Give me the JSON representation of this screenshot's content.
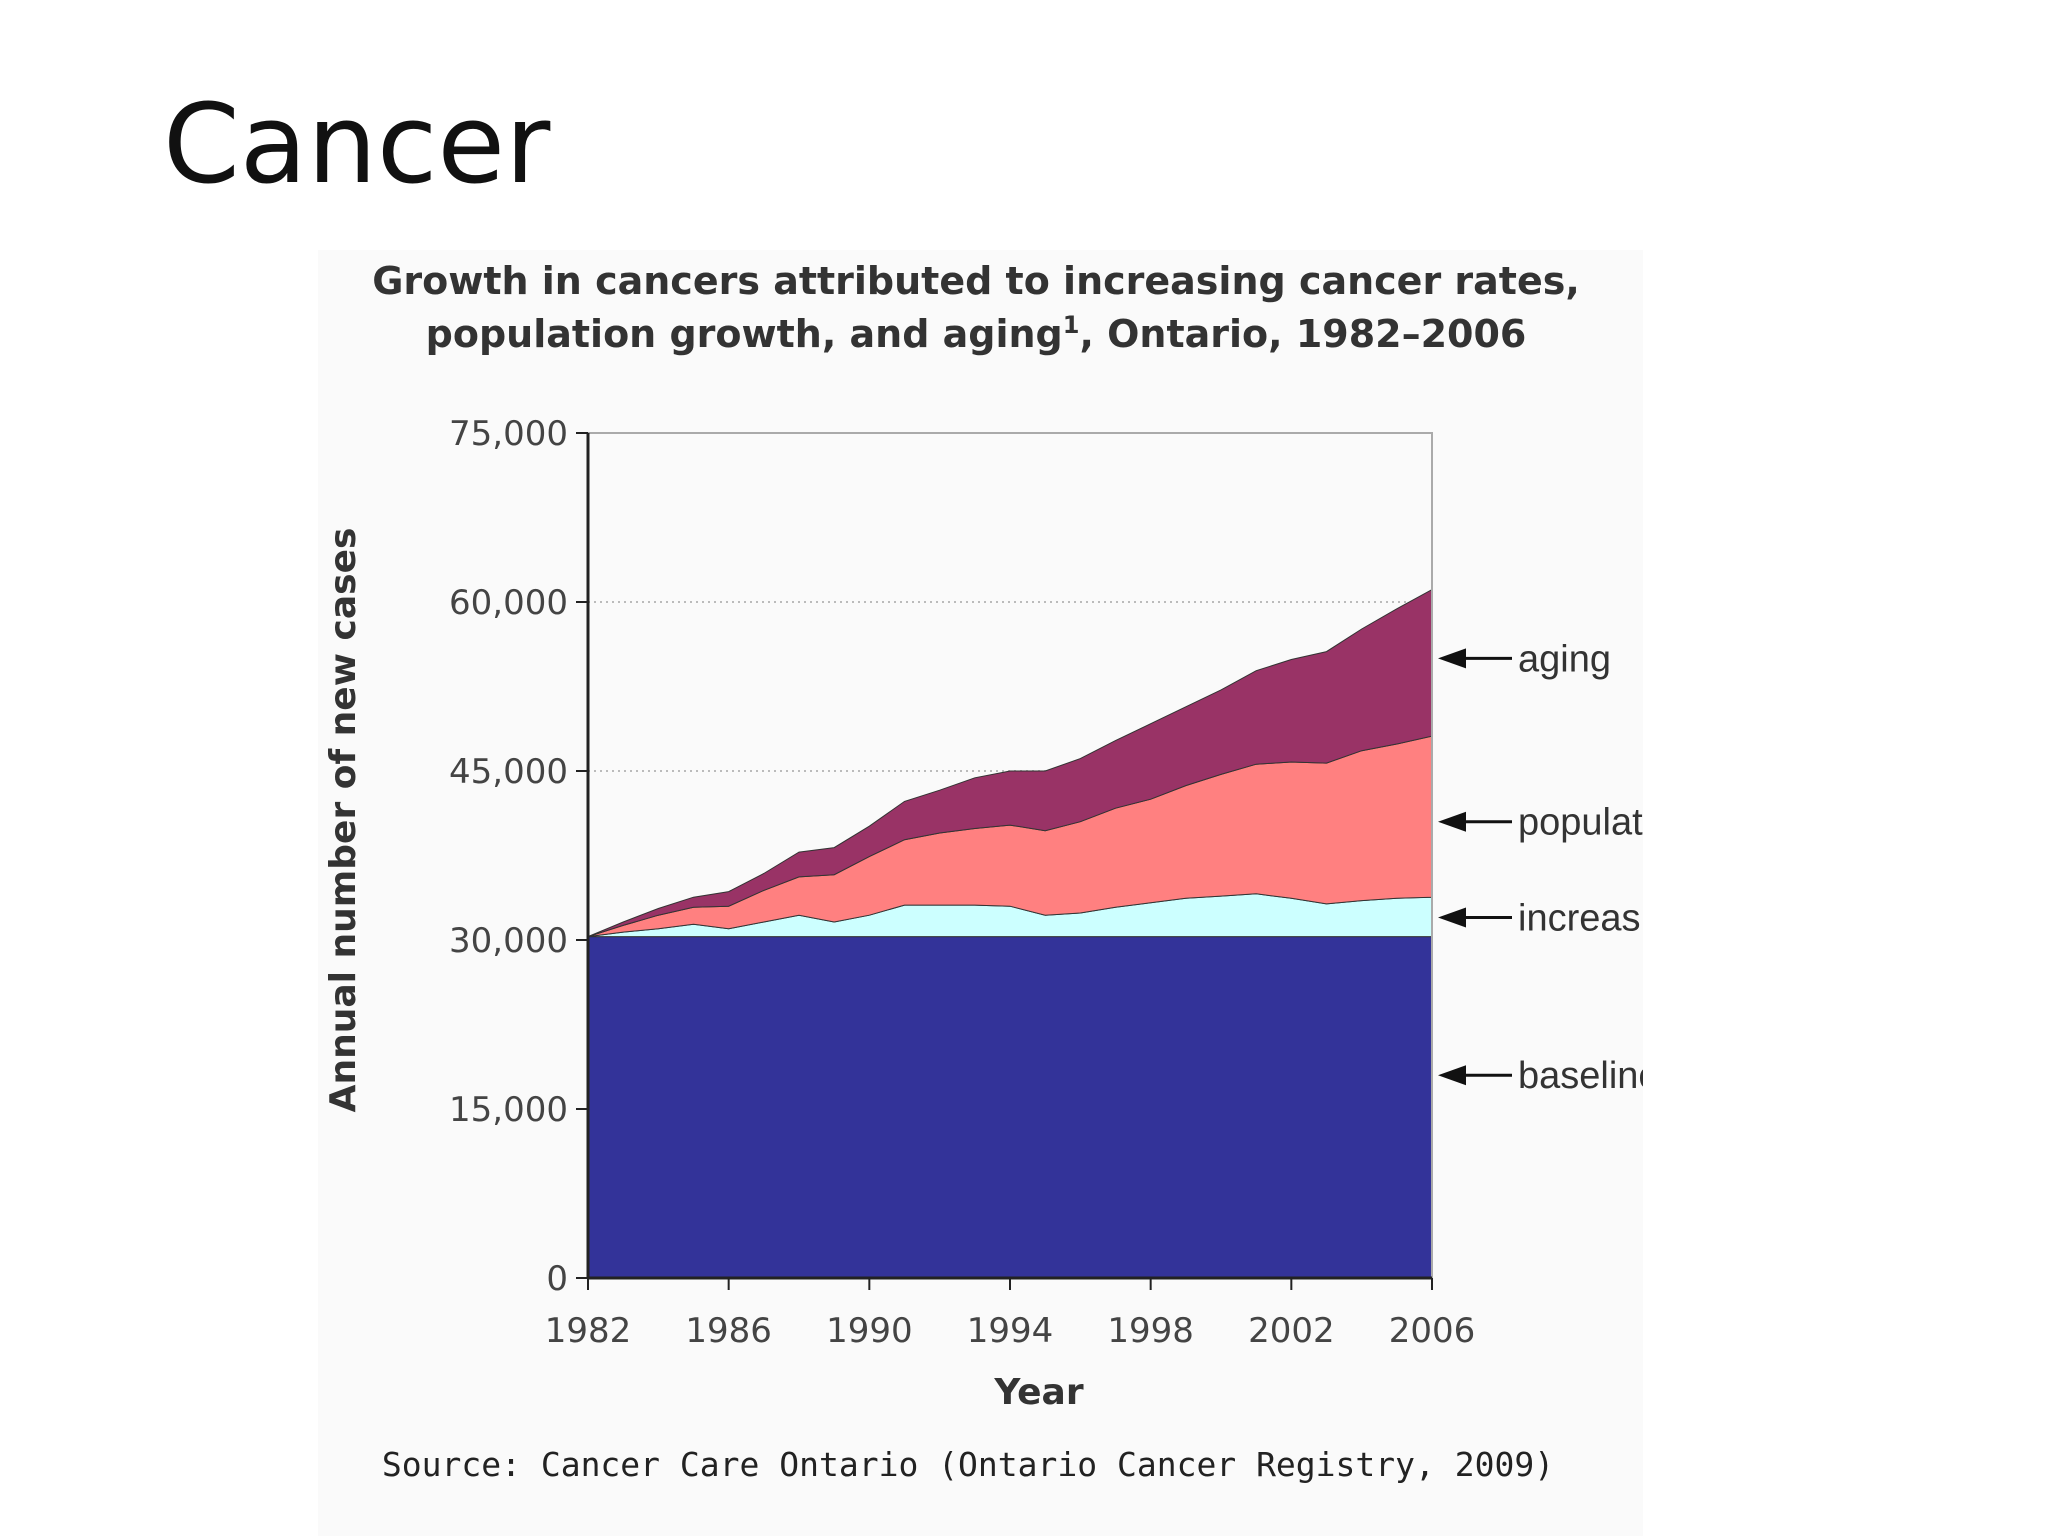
{
  "slide": {
    "title": "Cancer"
  },
  "chart_data": {
    "type": "area",
    "stacked": true,
    "title_line1": "Growth in cancers attributed to increasing cancer rates,",
    "title_line2_a": "population growth, and aging",
    "title_superscript": "1",
    "title_line2_b": ", Ontario, 1982–2006",
    "xlabel": "Year",
    "ylabel": "Annual number of new cases",
    "ylim": [
      0,
      75000
    ],
    "xlim": [
      1982,
      2006
    ],
    "y_ticks": [
      {
        "value": 0,
        "label": "0"
      },
      {
        "value": 15000,
        "label": "15,000"
      },
      {
        "value": 30000,
        "label": "30,000"
      },
      {
        "value": 45000,
        "label": "45,000"
      },
      {
        "value": 60000,
        "label": "60,000"
      },
      {
        "value": 75000,
        "label": "75,000"
      }
    ],
    "x_ticks": [
      {
        "value": 1982,
        "label": "1982"
      },
      {
        "value": 1986,
        "label": "1986"
      },
      {
        "value": 1990,
        "label": "1990"
      },
      {
        "value": 1994,
        "label": "1994"
      },
      {
        "value": 1998,
        "label": "1998"
      },
      {
        "value": 2002,
        "label": "2002"
      },
      {
        "value": 2006,
        "label": "2006"
      }
    ],
    "gridlines": "horizontal dotted",
    "legend_placement": "right, arrows pointing to areas",
    "x": [
      1982,
      1983,
      1984,
      1985,
      1986,
      1987,
      1988,
      1989,
      1990,
      1991,
      1992,
      1993,
      1994,
      1995,
      1996,
      1997,
      1998,
      1999,
      2000,
      2001,
      2002,
      2003,
      2004,
      2005,
      2006
    ],
    "series": [
      {
        "name": "baseline cancer risk",
        "color": "#333399",
        "totals": [
          30300,
          30300,
          30300,
          30300,
          30300,
          30300,
          30300,
          30300,
          30300,
          30300,
          30300,
          30300,
          30300,
          30300,
          30300,
          30300,
          30300,
          30300,
          30300,
          30300,
          30300,
          30300,
          30300,
          30300,
          30300
        ]
      },
      {
        "name": "increasing cancer rates",
        "color": "#ccffff",
        "totals": [
          30300,
          30700,
          31000,
          31400,
          31000,
          31600,
          32200,
          31600,
          32200,
          33100,
          33100,
          33100,
          33000,
          32200,
          32400,
          32900,
          33300,
          33700,
          33900,
          34100,
          33700,
          33200,
          33500,
          33700,
          33800
        ]
      },
      {
        "name": "population growth",
        "color": "#ff8080",
        "totals": [
          30300,
          31300,
          32200,
          32900,
          33000,
          34400,
          35600,
          35800,
          37400,
          38900,
          39500,
          39900,
          40200,
          39700,
          40500,
          41700,
          42500,
          43700,
          44700,
          45600,
          45800,
          45700,
          46800,
          47400,
          48100
        ]
      },
      {
        "name": "aging",
        "color": "#993366",
        "totals": [
          30300,
          31600,
          32800,
          33800,
          34300,
          35900,
          37800,
          38200,
          40100,
          42300,
          43300,
          44400,
          45000,
          45000,
          46100,
          47700,
          49200,
          50700,
          52200,
          53900,
          54900,
          55600,
          57600,
          59400,
          61100
        ]
      }
    ],
    "legend": [
      {
        "label": "aging",
        "anchor_value": 55000
      },
      {
        "label": "population growth",
        "anchor_value": 40500
      },
      {
        "label": "increasing cancer rates",
        "anchor_value": 32000
      },
      {
        "label": "baseline cancer risk",
        "anchor_value": 18000
      }
    ],
    "source": "Source: Cancer Care Ontario (Ontario Cancer Registry, 2009)"
  }
}
